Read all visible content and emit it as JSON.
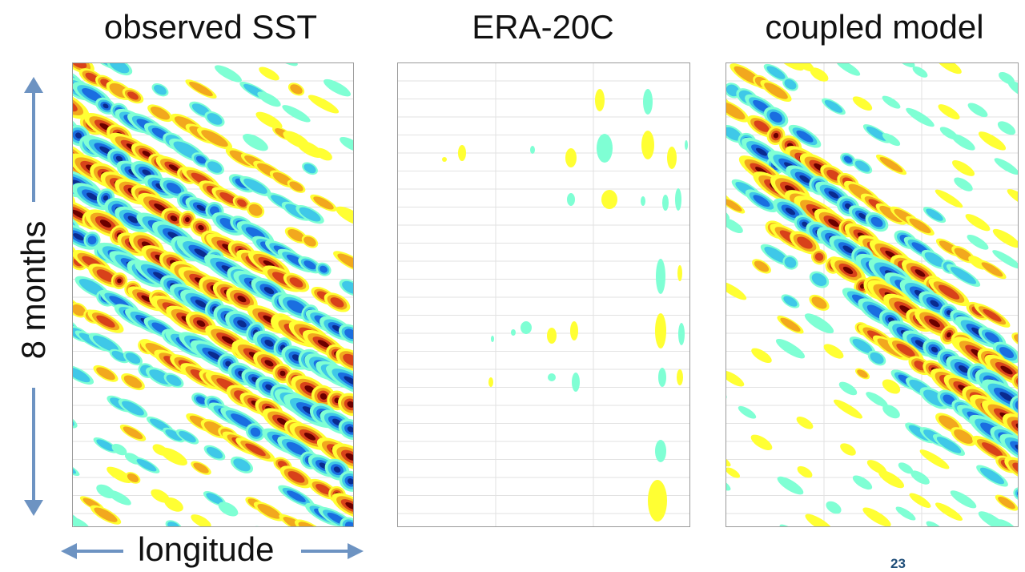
{
  "titles": {
    "observed": "observed SST",
    "era": "ERA-20C",
    "coupled": "coupled model"
  },
  "axes": {
    "y_label": "8 months",
    "x_label": "longitude"
  },
  "page_number": "23",
  "colors": {
    "arrow": "#6d93c2",
    "gridline": "#e2e2e2",
    "frame": "#9a9a9a",
    "contour_levels": [
      "#7fffd4",
      "#3fc8e8",
      "#1a6ee0",
      "#0a2b8f",
      "#ffff33",
      "#f2a81e",
      "#d8421a",
      "#6b0000"
    ]
  }
}
